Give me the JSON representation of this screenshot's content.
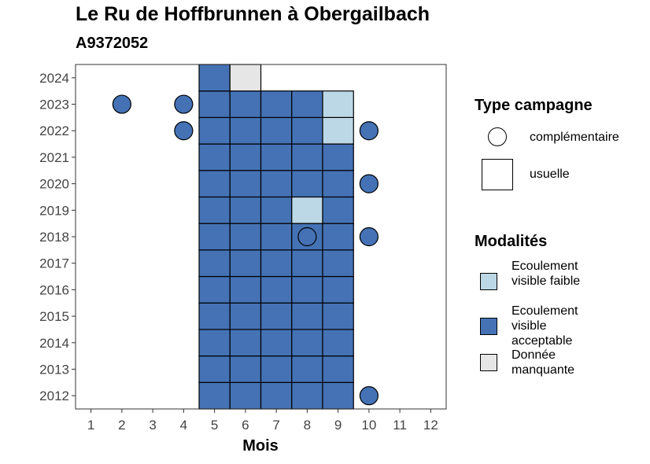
{
  "chart_data": {
    "type": "heatmap",
    "title": "Le Ru de Hoffbrunnen à Obergailbach",
    "subtitle": "A9372052",
    "xlabel": "Mois",
    "ylabel": "",
    "x_ticks": [
      "1",
      "2",
      "3",
      "4",
      "5",
      "6",
      "7",
      "8",
      "9",
      "10",
      "11",
      "12"
    ],
    "y_ticks": [
      "2012",
      "2013",
      "2014",
      "2015",
      "2016",
      "2017",
      "2018",
      "2019",
      "2020",
      "2021",
      "2022",
      "2023",
      "2024"
    ],
    "xlim": [
      0.5,
      12.5
    ],
    "ylim": [
      2011.5,
      2024.5
    ],
    "grid": false,
    "legend_position": "right",
    "colors": {
      "Ecoulement visible faible": "#bcd8e6",
      "Ecoulement visible acceptable": "#4472b5",
      "Donnée manquante": "#e6e6e6"
    },
    "usuelle_squares": [
      {
        "year": 2012,
        "month": 5,
        "modalite": "Ecoulement visible acceptable"
      },
      {
        "year": 2012,
        "month": 6,
        "modalite": "Ecoulement visible acceptable"
      },
      {
        "year": 2012,
        "month": 7,
        "modalite": "Ecoulement visible acceptable"
      },
      {
        "year": 2012,
        "month": 8,
        "modalite": "Ecoulement visible acceptable"
      },
      {
        "year": 2012,
        "month": 9,
        "modalite": "Ecoulement visible acceptable"
      },
      {
        "year": 2013,
        "month": 5,
        "modalite": "Ecoulement visible acceptable"
      },
      {
        "year": 2013,
        "month": 6,
        "modalite": "Ecoulement visible acceptable"
      },
      {
        "year": 2013,
        "month": 7,
        "modalite": "Ecoulement visible acceptable"
      },
      {
        "year": 2013,
        "month": 8,
        "modalite": "Ecoulement visible acceptable"
      },
      {
        "year": 2013,
        "month": 9,
        "modalite": "Ecoulement visible acceptable"
      },
      {
        "year": 2014,
        "month": 5,
        "modalite": "Ecoulement visible acceptable"
      },
      {
        "year": 2014,
        "month": 6,
        "modalite": "Ecoulement visible acceptable"
      },
      {
        "year": 2014,
        "month": 7,
        "modalite": "Ecoulement visible acceptable"
      },
      {
        "year": 2014,
        "month": 8,
        "modalite": "Ecoulement visible acceptable"
      },
      {
        "year": 2014,
        "month": 9,
        "modalite": "Ecoulement visible acceptable"
      },
      {
        "year": 2015,
        "month": 5,
        "modalite": "Ecoulement visible acceptable"
      },
      {
        "year": 2015,
        "month": 6,
        "modalite": "Ecoulement visible acceptable"
      },
      {
        "year": 2015,
        "month": 7,
        "modalite": "Ecoulement visible acceptable"
      },
      {
        "year": 2015,
        "month": 8,
        "modalite": "Ecoulement visible acceptable"
      },
      {
        "year": 2015,
        "month": 9,
        "modalite": "Ecoulement visible acceptable"
      },
      {
        "year": 2016,
        "month": 5,
        "modalite": "Ecoulement visible acceptable"
      },
      {
        "year": 2016,
        "month": 6,
        "modalite": "Ecoulement visible acceptable"
      },
      {
        "year": 2016,
        "month": 7,
        "modalite": "Ecoulement visible acceptable"
      },
      {
        "year": 2016,
        "month": 8,
        "modalite": "Ecoulement visible acceptable"
      },
      {
        "year": 2016,
        "month": 9,
        "modalite": "Ecoulement visible acceptable"
      },
      {
        "year": 2017,
        "month": 5,
        "modalite": "Ecoulement visible acceptable"
      },
      {
        "year": 2017,
        "month": 6,
        "modalite": "Ecoulement visible acceptable"
      },
      {
        "year": 2017,
        "month": 7,
        "modalite": "Ecoulement visible acceptable"
      },
      {
        "year": 2017,
        "month": 8,
        "modalite": "Ecoulement visible acceptable"
      },
      {
        "year": 2017,
        "month": 9,
        "modalite": "Ecoulement visible acceptable"
      },
      {
        "year": 2018,
        "month": 5,
        "modalite": "Ecoulement visible acceptable"
      },
      {
        "year": 2018,
        "month": 6,
        "modalite": "Ecoulement visible acceptable"
      },
      {
        "year": 2018,
        "month": 7,
        "modalite": "Ecoulement visible acceptable"
      },
      {
        "year": 2018,
        "month": 8,
        "modalite": "Ecoulement visible acceptable"
      },
      {
        "year": 2018,
        "month": 9,
        "modalite": "Ecoulement visible acceptable"
      },
      {
        "year": 2019,
        "month": 5,
        "modalite": "Ecoulement visible acceptable"
      },
      {
        "year": 2019,
        "month": 6,
        "modalite": "Ecoulement visible acceptable"
      },
      {
        "year": 2019,
        "month": 7,
        "modalite": "Ecoulement visible acceptable"
      },
      {
        "year": 2019,
        "month": 8,
        "modalite": "Ecoulement visible faible"
      },
      {
        "year": 2019,
        "month": 9,
        "modalite": "Ecoulement visible acceptable"
      },
      {
        "year": 2020,
        "month": 5,
        "modalite": "Ecoulement visible acceptable"
      },
      {
        "year": 2020,
        "month": 6,
        "modalite": "Ecoulement visible acceptable"
      },
      {
        "year": 2020,
        "month": 7,
        "modalite": "Ecoulement visible acceptable"
      },
      {
        "year": 2020,
        "month": 8,
        "modalite": "Ecoulement visible acceptable"
      },
      {
        "year": 2020,
        "month": 9,
        "modalite": "Ecoulement visible acceptable"
      },
      {
        "year": 2021,
        "month": 5,
        "modalite": "Ecoulement visible acceptable"
      },
      {
        "year": 2021,
        "month": 6,
        "modalite": "Ecoulement visible acceptable"
      },
      {
        "year": 2021,
        "month": 7,
        "modalite": "Ecoulement visible acceptable"
      },
      {
        "year": 2021,
        "month": 8,
        "modalite": "Ecoulement visible acceptable"
      },
      {
        "year": 2021,
        "month": 9,
        "modalite": "Ecoulement visible acceptable"
      },
      {
        "year": 2022,
        "month": 5,
        "modalite": "Ecoulement visible acceptable"
      },
      {
        "year": 2022,
        "month": 6,
        "modalite": "Ecoulement visible acceptable"
      },
      {
        "year": 2022,
        "month": 7,
        "modalite": "Ecoulement visible acceptable"
      },
      {
        "year": 2022,
        "month": 8,
        "modalite": "Ecoulement visible acceptable"
      },
      {
        "year": 2022,
        "month": 9,
        "modalite": "Ecoulement visible faible"
      },
      {
        "year": 2023,
        "month": 5,
        "modalite": "Ecoulement visible acceptable"
      },
      {
        "year": 2023,
        "month": 6,
        "modalite": "Ecoulement visible acceptable"
      },
      {
        "year": 2023,
        "month": 7,
        "modalite": "Ecoulement visible acceptable"
      },
      {
        "year": 2023,
        "month": 8,
        "modalite": "Ecoulement visible acceptable"
      },
      {
        "year": 2023,
        "month": 9,
        "modalite": "Ecoulement visible faible"
      },
      {
        "year": 2024,
        "month": 5,
        "modalite": "Ecoulement visible acceptable"
      },
      {
        "year": 2024,
        "month": 6,
        "modalite": "Donnée manquante"
      }
    ],
    "complementaire_points": [
      {
        "year": 2023,
        "month": 2,
        "modalite": "Ecoulement visible acceptable"
      },
      {
        "year": 2023,
        "month": 4,
        "modalite": "Ecoulement visible acceptable"
      },
      {
        "year": 2022,
        "month": 4,
        "modalite": "Ecoulement visible acceptable"
      },
      {
        "year": 2022,
        "month": 10,
        "modalite": "Ecoulement visible acceptable"
      },
      {
        "year": 2020,
        "month": 10,
        "modalite": "Ecoulement visible acceptable"
      },
      {
        "year": 2018,
        "month": 8,
        "modalite": "Ecoulement visible acceptable"
      },
      {
        "year": 2018,
        "month": 10,
        "modalite": "Ecoulement visible acceptable"
      },
      {
        "year": 2012,
        "month": 10,
        "modalite": "Ecoulement visible acceptable"
      }
    ]
  },
  "legend": {
    "type_title": "Type campagne",
    "type_items": [
      "complémentaire",
      "usuelle"
    ],
    "mod_title": "Modalités",
    "mod_items": [
      {
        "label": "Ecoulement visible faible",
        "color": "#bcd8e6"
      },
      {
        "label": "Ecoulement visible acceptable",
        "color": "#4472b5"
      },
      {
        "label": "Donnée manquante",
        "color": "#e6e6e6"
      }
    ]
  }
}
